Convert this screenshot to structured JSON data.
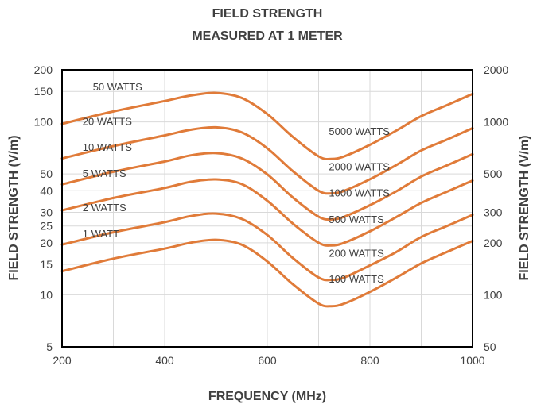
{
  "chart_data": {
    "type": "line",
    "title": [
      "FIELD STRENGTH",
      "MEASURED AT 1 METER"
    ],
    "xlabel": "FREQUENCY (MHz)",
    "ylabel_left": "FIELD STRENGTH (V/m)",
    "ylabel_right": "FIELD STRENGTH (V/m)",
    "xlim": [
      200,
      1000
    ],
    "x_ticks": [
      200,
      400,
      600,
      800,
      1000
    ],
    "x_grid": [
      300,
      400,
      500,
      600,
      700,
      800,
      900
    ],
    "y_scale": "log",
    "ylim_left": [
      5,
      200
    ],
    "y_ticks_left": [
      5,
      10,
      15,
      20,
      25,
      30,
      40,
      50,
      100,
      150,
      200
    ],
    "ylim_right": [
      50,
      2000
    ],
    "y_ticks_right": [
      50,
      100,
      200,
      300,
      500,
      1000,
      2000
    ],
    "grid": true,
    "line_color": "#E07B39",
    "x": [
      200,
      300,
      400,
      450,
      500,
      550,
      600,
      650,
      700,
      725,
      750,
      800,
      850,
      900,
      950,
      1000
    ],
    "series": [
      {
        "name": "1 WATT",
        "values": [
          13.7,
          16.2,
          18.5,
          20.0,
          20.8,
          19.5,
          15.6,
          11.5,
          8.9,
          8.6,
          8.9,
          10.4,
          12.5,
          15.2,
          17.7,
          20.5
        ]
      },
      {
        "name": "2 WATTS",
        "values": [
          19.5,
          23.0,
          26.3,
          28.5,
          29.5,
          27.5,
          22.2,
          16.3,
          12.6,
          12.2,
          12.6,
          14.8,
          17.6,
          21.6,
          25.0,
          29.0
        ]
      },
      {
        "name": "5 WATTS",
        "values": [
          30.8,
          36.3,
          41.5,
          45.0,
          46.5,
          43.7,
          35.0,
          25.8,
          20.0,
          19.3,
          20.0,
          23.3,
          28.0,
          34.0,
          39.5,
          45.8
        ]
      },
      {
        "name": "10 WATTS",
        "values": [
          43.5,
          51.5,
          59.0,
          64.0,
          66.0,
          61.5,
          49.7,
          36.5,
          28.3,
          27.3,
          28.3,
          33.0,
          39.5,
          48.3,
          56.0,
          65.0
        ]
      },
      {
        "name": "20 WATTS",
        "values": [
          61.5,
          72.5,
          83.5,
          90.0,
          93.0,
          87.0,
          70.3,
          51.8,
          40.0,
          38.6,
          40.0,
          46.6,
          56.0,
          68.3,
          79.0,
          92.0
        ]
      },
      {
        "name": "50 WATTS",
        "values": [
          97.5,
          115.0,
          132.0,
          142.0,
          147.0,
          137.5,
          111.0,
          81.8,
          63.2,
          61.0,
          63.2,
          73.7,
          88.6,
          108.0,
          125.0,
          145.0
        ]
      }
    ],
    "series_labels": [
      {
        "text": "1 WATT",
        "x": 240,
        "y": 21.5
      },
      {
        "text": "2 WATTS",
        "x": 240,
        "y": 30.5
      },
      {
        "text": "5 WATTS",
        "x": 240,
        "y": 48.0
      },
      {
        "text": "10 WATTS",
        "x": 240,
        "y": 68.0
      },
      {
        "text": "20 WATTS",
        "x": 240,
        "y": 96.0
      },
      {
        "text": "50 WATTS",
        "x": 260,
        "y": 152.0
      }
    ],
    "right_series_labels": [
      {
        "text": "5000 WATTS",
        "x": 720,
        "y": 84.0
      },
      {
        "text": "2000 WATTS",
        "x": 720,
        "y": 52.5
      },
      {
        "text": "1000 WATTS",
        "x": 720,
        "y": 37.0
      },
      {
        "text": "500 WATTS",
        "x": 720,
        "y": 26.0
      },
      {
        "text": "200 WATTS",
        "x": 720,
        "y": 16.6
      },
      {
        "text": "100 WATTS",
        "x": 720,
        "y": 11.8
      }
    ]
  }
}
